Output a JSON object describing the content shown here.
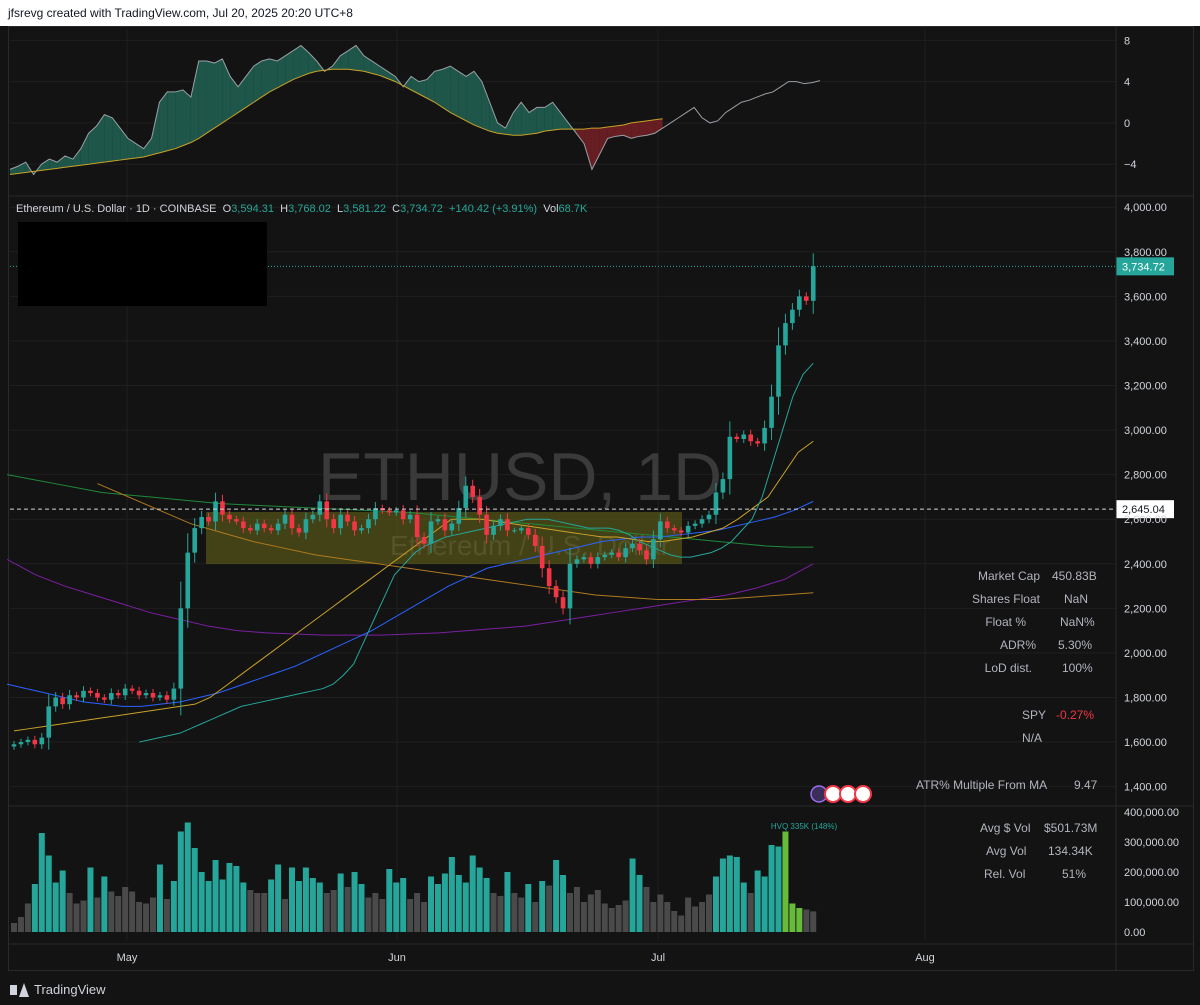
{
  "header": {
    "attribution": "jfsrevg created with TradingView.com, Jul 20, 2025 20:20 UTC+8"
  },
  "legend": {
    "symbol": "Ethereum / U.S. Dollar · 1D · COINBASE",
    "o_label": "O",
    "o": "3,594.31",
    "h_label": "H",
    "h": "3,768.02",
    "l_label": "L",
    "l": "3,581.22",
    "c_label": "C",
    "c": "3,734.72",
    "change": "+140.42 (+3.91%)",
    "vol_label": "Vol",
    "vol": "68.7K"
  },
  "watermark": {
    "symbol": "ETHUSD, 1D",
    "name": "Ethereum / U.S. Dollar"
  },
  "stats": {
    "items": [
      {
        "label": "Market Cap",
        "value": "450.83B"
      },
      {
        "label": "Shares Float",
        "value": "NaN"
      },
      {
        "label": "Float %",
        "value": "NaN%"
      },
      {
        "label": "ADR%",
        "value": "5.30%"
      },
      {
        "label": "LoD dist.",
        "value": "100%"
      }
    ],
    "spy_label": "SPY",
    "spy_value": "-0.27%",
    "na": "N/A",
    "atr_label": "ATR% Multiple From MA",
    "atr_value": "9.47"
  },
  "vol_stats": {
    "items": [
      {
        "label": "Avg $ Vol",
        "value": "$501.73M"
      },
      {
        "label": "Avg Vol",
        "value": "134.34K"
      },
      {
        "label": "Rel. Vol",
        "value": "51%"
      }
    ],
    "hvq": "HVQ 335K (148%)"
  },
  "colors": {
    "up": "#26a69a",
    "down": "#f23645",
    "bg": "#131313",
    "grid": "#1f1f1f"
  },
  "footer": {
    "brand": "TradingView"
  },
  "chart_data": {
    "type": "candlestick",
    "x_labels": [
      "May",
      "Jun",
      "Jul",
      "Aug"
    ],
    "price_axis": {
      "ticks": [
        "4,000.00",
        "3,800.00",
        "3,600.00",
        "3,400.00",
        "3,200.00",
        "3,000.00",
        "2,800.00",
        "2,600.00",
        "2,400.00",
        "2,200.00",
        "2,000.00",
        "1,800.00",
        "1,600.00",
        "1,400.00"
      ],
      "ylim": [
        1340,
        4010
      ],
      "last_price": "3,734.72",
      "level_price": "2,645.04"
    },
    "osc_axis": {
      "ticks": [
        "8",
        "4",
        "0",
        "−4"
      ],
      "ylim": [
        -6.5,
        9
      ]
    },
    "vol_axis": {
      "ticks": [
        "400,000.00",
        "300,000.00",
        "200,000.00",
        "100,000.00",
        "0.00"
      ],
      "ylim": [
        0,
        400000
      ]
    },
    "closes": [
      1590,
      1600,
      1610,
      1590,
      1620,
      1760,
      1800,
      1770,
      1810,
      1800,
      1830,
      1820,
      1800,
      1790,
      1820,
      1810,
      1840,
      1830,
      1810,
      1820,
      1800,
      1810,
      1790,
      1840,
      2200,
      2450,
      2560,
      2610,
      2590,
      2680,
      2620,
      2600,
      2590,
      2560,
      2550,
      2580,
      2560,
      2550,
      2580,
      2620,
      2560,
      2540,
      2600,
      2620,
      2680,
      2600,
      2560,
      2620,
      2590,
      2550,
      2560,
      2600,
      2650,
      2640,
      2630,
      2640,
      2600,
      2620,
      2520,
      2490,
      2590,
      2600,
      2550,
      2580,
      2650,
      2750,
      2700,
      2620,
      2530,
      2570,
      2600,
      2550,
      2550,
      2560,
      2530,
      2480,
      2380,
      2300,
      2250,
      2200,
      2400,
      2420,
      2430,
      2400,
      2430,
      2440,
      2450,
      2430,
      2470,
      2490,
      2460,
      2420,
      2510,
      2590,
      2560,
      2550,
      2540,
      2570,
      2580,
      2600,
      2620,
      2720,
      2780,
      2970,
      2960,
      2980,
      2950,
      2940,
      3010,
      3150,
      3380,
      3480,
      3540,
      3600,
      3580,
      3734.72
    ],
    "volumes": [
      30000,
      50000,
      95000,
      160000,
      330000,
      255000,
      165000,
      205000,
      130000,
      95000,
      105000,
      215000,
      115000,
      185000,
      135000,
      120000,
      150000,
      135000,
      100000,
      95000,
      115000,
      225000,
      110000,
      170000,
      335000,
      365000,
      280000,
      200000,
      170000,
      240000,
      175000,
      230000,
      220000,
      165000,
      140000,
      130000,
      130000,
      175000,
      225000,
      110000,
      215000,
      170000,
      215000,
      180000,
      165000,
      130000,
      140000,
      195000,
      150000,
      200000,
      160000,
      115000,
      130000,
      110000,
      210000,
      165000,
      180000,
      110000,
      130000,
      100000,
      185000,
      160000,
      195000,
      250000,
      190000,
      165000,
      255000,
      215000,
      180000,
      130000,
      120000,
      200000,
      130000,
      115000,
      160000,
      100000,
      170000,
      155000,
      240000,
      190000,
      130000,
      150000,
      100000,
      125000,
      140000,
      95000,
      80000,
      90000,
      105000,
      245000,
      190000,
      150000,
      100000,
      125000,
      100000,
      70000,
      55000,
      115000,
      85000,
      100000,
      125000,
      185000,
      245000,
      255000,
      250000,
      165000,
      130000,
      205000,
      185000,
      290000,
      285000,
      335000,
      95000,
      80000,
      75000,
      68700
    ],
    "series": [
      {
        "name": "",
        "values": [
          -4.5,
          -4.2,
          -3.8,
          -5,
          -4,
          -3.5,
          -3.8,
          -3.2,
          -3.5,
          -2.5,
          -1,
          -0.3,
          0.8,
          0.5,
          -0.5,
          -1.5,
          -2,
          -2.5,
          -1.5,
          2,
          3,
          3,
          3.2,
          2.5,
          6,
          6,
          5.8,
          6.2,
          4.5,
          3.5,
          4.5,
          5.5,
          6,
          6.2,
          6,
          6.5,
          7,
          7.5,
          6.8,
          6,
          5,
          5.5,
          6.5,
          7,
          7.5,
          6.5,
          6,
          5.5,
          5,
          4.5,
          3.5,
          4.5,
          4,
          4.2,
          5,
          5.2,
          5.5,
          5,
          4.5,
          5,
          4,
          2,
          0,
          -0.5,
          1,
          2,
          1,
          1.5,
          1.5,
          2,
          1,
          0,
          -1,
          -2,
          -4.5,
          -3,
          -1.5,
          -1.3,
          -1.2,
          -1.5,
          -1.3,
          -1.2,
          -1,
          -0.5,
          0,
          0.5,
          1,
          1.5,
          0.5,
          0,
          0.2,
          1,
          1.5,
          2,
          2.2,
          2.5,
          2.8,
          3,
          3.5,
          4,
          4,
          3.8,
          3.9,
          4.1
        ]
      },
      {
        "name": "",
        "values": [
          -5,
          -4.9,
          -4.8,
          -4.7,
          -4.6,
          -4.5,
          -4.4,
          -4.3,
          -4.2,
          -4.1,
          -4,
          -3.9,
          -3.8,
          -3.7,
          -3.6,
          -3.5,
          -3.4,
          -3.3,
          -3.1,
          -2.9,
          -2.7,
          -2.5,
          -2.2,
          -1.9,
          -1.5,
          -1,
          -0.5,
          0,
          0.5,
          1,
          1.5,
          2,
          2.5,
          3,
          3.4,
          3.8,
          4.2,
          4.5,
          4.8,
          5,
          5.1,
          5.2,
          5.2,
          5.2,
          5.1,
          5,
          4.8,
          4.6,
          4.3,
          4,
          3.6,
          3.2,
          2.8,
          2.4,
          2,
          1.5,
          1,
          0.6,
          0.2,
          -0.2,
          -0.5,
          -0.8,
          -1,
          -1.1,
          -1.2,
          -1.2,
          -1.1,
          -1,
          -0.8,
          -0.7,
          -0.6,
          -0.6,
          -0.6,
          -0.6,
          -0.5,
          -0.5,
          -0.4,
          -0.3,
          -0.2,
          0,
          0.1,
          0.2,
          0.3,
          0.4
        ]
      }
    ],
    "ma_fast": [
      1600,
      1610,
      1620,
      1630,
      1640,
      1660,
      1680,
      1700,
      1720,
      1740,
      1760,
      1770,
      1780,
      1790,
      1800,
      1810,
      1820,
      1830,
      1840,
      1860,
      1900,
      1950,
      2050,
      2150,
      2250,
      2350,
      2400,
      2450,
      2480,
      2500,
      2520,
      2530,
      2540,
      2550,
      2560,
      2570,
      2580,
      2590,
      2600,
      2600,
      2600,
      2590,
      2580,
      2570,
      2560,
      2560,
      2560,
      2550,
      2530,
      2500,
      2480,
      2460,
      2440,
      2430,
      2430,
      2440,
      2450,
      2470,
      2500,
      2550,
      2600,
      2700,
      2850,
      3000,
      3150,
      3250,
      3300
    ],
    "ma_mid": [
      1650,
      1660,
      1670,
      1680,
      1690,
      1700,
      1710,
      1720,
      1730,
      1740,
      1750,
      1760,
      1770,
      1800,
      1850,
      1900,
      1950,
      2000,
      2050,
      2100,
      2150,
      2200,
      2250,
      2300,
      2350,
      2400,
      2450,
      2500,
      2550,
      2600,
      2600,
      2600,
      2590,
      2580,
      2570,
      2560,
      2550,
      2540,
      2530,
      2520,
      2520,
      2510,
      2500,
      2500,
      2510,
      2520,
      2540,
      2560,
      2600,
      2650,
      2700,
      2800,
      2900,
      2950
    ],
    "ma_slow": [
      1860,
      1840,
      1820,
      1800,
      1780,
      1770,
      1760,
      1760,
      1770,
      1780,
      1800,
      1820,
      1850,
      1880,
      1910,
      1940,
      1980,
      2020,
      2060,
      2100,
      2150,
      2200,
      2250,
      2300,
      2340,
      2380,
      2400,
      2420,
      2440,
      2460,
      2480,
      2500,
      2510,
      2520,
      2520,
      2530,
      2540,
      2550,
      2570,
      2590,
      2610,
      2640,
      2680
    ],
    "ma_200": [
      2800,
      2780,
      2760,
      2740,
      2720,
      2710,
      2700,
      2690,
      2680,
      2670,
      2665,
      2660,
      2655,
      2650,
      2645,
      2640,
      2635,
      2630,
      2620,
      2610,
      2600,
      2590,
      2580,
      2570,
      2560,
      2550,
      2540,
      2530,
      2520,
      2510,
      2500,
      2490,
      2480,
      2475,
      2475
    ],
    "ma_purple": [
      2420,
      2350,
      2300,
      2260,
      2220,
      2180,
      2150,
      2120,
      2100,
      2090,
      2085,
      2080,
      2080,
      2080,
      2085,
      2090,
      2100,
      2110,
      2120,
      2140,
      2160,
      2180,
      2200,
      2220,
      2240,
      2260,
      2290,
      2330,
      2400
    ],
    "ma_orange": [
      2760,
      2700,
      2640,
      2580,
      2540,
      2500,
      2470,
      2440,
      2420,
      2400,
      2380,
      2360,
      2340,
      2320,
      2300,
      2280,
      2260,
      2250,
      2240,
      2240,
      2240,
      2250,
      2260,
      2270
    ]
  }
}
